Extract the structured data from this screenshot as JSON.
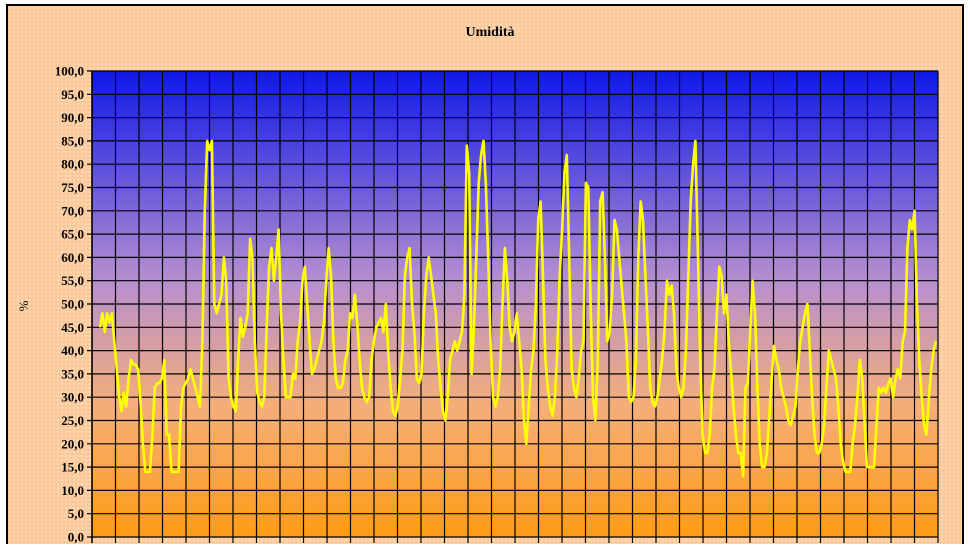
{
  "chart_data": {
    "type": "line",
    "title": "Umidità",
    "ylabel": "%",
    "xlabel": "",
    "ylim": [
      0,
      100
    ],
    "yticks": [
      "100,0",
      "95,0",
      "90,0",
      "85,0",
      "80,0",
      "75,0",
      "70,0",
      "65,0",
      "60,0",
      "55,0",
      "50,0",
      "45,0",
      "40,0",
      "35,0",
      "30,0",
      "25,0",
      "20,0",
      "15,0",
      "10,0",
      "5,0",
      "0,0"
    ],
    "grid": true,
    "legend": "none",
    "background_gradient": [
      "#0f19e6",
      "#b68fd0",
      "#f5ae78",
      "#ff9c14"
    ],
    "series_color": "#ffff00",
    "series": [
      {
        "values": [
          45,
          48,
          44,
          48,
          46,
          48,
          42,
          36,
          30,
          27,
          31,
          28,
          34,
          38,
          37,
          37,
          36,
          29,
          20,
          14,
          14,
          14,
          22,
          32,
          33,
          33,
          34,
          38,
          22,
          22,
          14,
          14,
          14,
          14,
          28,
          32,
          33,
          34,
          36,
          34,
          32,
          30,
          28,
          42,
          70,
          85,
          83,
          85,
          50,
          48,
          50,
          52,
          60,
          55,
          34,
          30,
          28,
          27,
          38,
          47,
          43,
          45,
          48,
          64,
          60,
          42,
          31,
          29,
          28,
          30,
          45,
          58,
          62,
          55,
          60,
          66,
          48,
          38,
          30,
          30,
          30,
          35,
          34,
          42,
          46,
          55,
          58,
          50,
          42,
          35,
          36,
          38,
          40,
          42,
          46,
          55,
          62,
          56,
          42,
          34,
          32,
          32,
          33,
          38,
          40,
          48,
          47,
          52,
          46,
          38,
          32,
          30,
          29,
          30,
          38,
          42,
          45,
          46,
          47,
          44,
          50,
          40,
          32,
          27,
          26,
          28,
          34,
          40,
          56,
          60,
          62,
          50,
          44,
          34,
          33,
          35,
          48,
          56,
          60,
          56,
          52,
          48,
          38,
          32,
          27,
          25,
          30,
          38,
          40,
          42,
          40,
          42,
          44,
          52,
          84,
          78,
          35,
          45,
          60,
          76,
          82,
          85,
          76,
          60,
          42,
          30,
          28,
          30,
          36,
          50,
          62,
          55,
          45,
          42,
          44,
          48,
          42,
          36,
          25,
          20,
          28,
          36,
          40,
          50,
          68,
          72,
          56,
          38,
          32,
          28,
          26,
          30,
          40,
          56,
          66,
          78,
          82,
          60,
          36,
          32,
          30,
          34,
          40,
          42,
          76,
          75,
          50,
          30,
          25,
          38,
          72,
          74,
          60,
          42,
          44,
          52,
          68,
          66,
          60,
          54,
          48,
          42,
          30,
          29,
          30,
          38,
          60,
          72,
          68,
          56,
          45,
          32,
          29,
          28,
          30,
          34,
          38,
          44,
          55,
          52,
          54,
          48,
          36,
          32,
          30,
          32,
          40,
          56,
          72,
          80,
          85,
          62,
          38,
          22,
          18,
          18,
          22,
          32,
          36,
          48,
          58,
          56,
          48,
          52,
          42,
          35,
          28,
          22,
          18,
          18,
          13,
          32,
          33,
          44,
          55,
          48,
          32,
          20,
          15,
          15,
          18,
          26,
          34,
          41,
          38,
          36,
          32,
          30,
          28,
          25,
          24,
          26,
          28,
          36,
          42,
          45,
          48,
          50,
          40,
          30,
          22,
          18,
          18,
          20,
          24,
          32,
          40,
          38,
          36,
          34,
          28,
          20,
          16,
          14,
          14,
          14,
          20,
          24,
          30,
          38,
          34,
          25,
          15,
          15,
          15,
          15,
          24,
          32,
          31,
          32,
          31,
          33,
          34,
          30,
          34,
          36,
          34,
          42,
          44,
          62,
          68,
          66,
          70,
          50,
          38,
          30,
          24,
          22,
          30,
          36,
          40,
          42
        ]
      }
    ]
  }
}
